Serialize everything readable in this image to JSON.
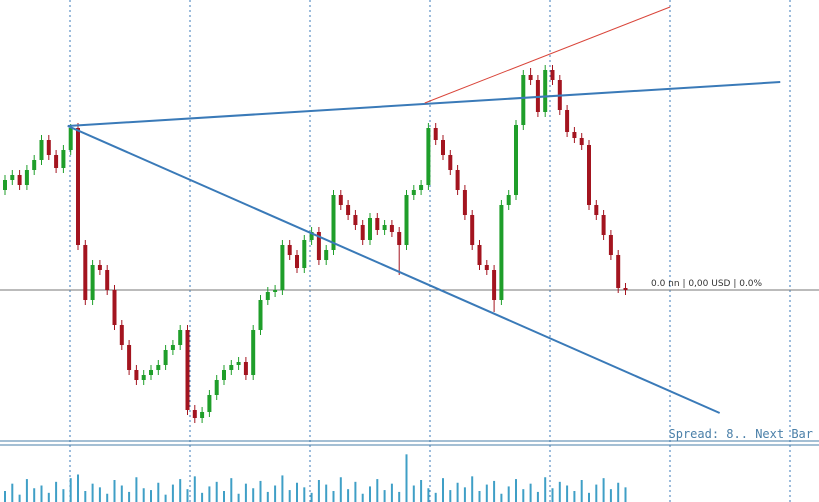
{
  "chart_data": {
    "type": "candlestick",
    "up_color": "#1f9e2a",
    "down_color": "#a3141f",
    "ylim": [
      0,
      440
    ],
    "ohlc": [
      [
        250,
        265,
        245,
        260
      ],
      [
        260,
        270,
        255,
        265
      ],
      [
        265,
        270,
        250,
        255
      ],
      [
        255,
        275,
        250,
        270
      ],
      [
        270,
        285,
        265,
        280
      ],
      [
        280,
        305,
        275,
        300
      ],
      [
        300,
        305,
        280,
        285
      ],
      [
        285,
        290,
        267,
        272
      ],
      [
        272,
        295,
        267,
        290
      ],
      [
        290,
        316,
        285,
        312
      ],
      [
        312,
        317,
        190,
        195
      ],
      [
        195,
        200,
        135,
        140
      ],
      [
        140,
        180,
        135,
        175
      ],
      [
        175,
        180,
        165,
        170
      ],
      [
        170,
        175,
        145,
        150
      ],
      [
        150,
        155,
        110,
        115
      ],
      [
        115,
        120,
        90,
        95
      ],
      [
        95,
        100,
        65,
        70
      ],
      [
        70,
        75,
        55,
        60
      ],
      [
        60,
        70,
        55,
        65
      ],
      [
        65,
        75,
        60,
        70
      ],
      [
        70,
        80,
        65,
        75
      ],
      [
        75,
        95,
        70,
        90
      ],
      [
        90,
        100,
        85,
        95
      ],
      [
        95,
        115,
        90,
        110
      ],
      [
        110,
        115,
        25,
        30
      ],
      [
        30,
        35,
        17,
        22
      ],
      [
        22,
        33,
        17,
        28
      ],
      [
        28,
        50,
        23,
        45
      ],
      [
        45,
        65,
        40,
        60
      ],
      [
        60,
        75,
        55,
        70
      ],
      [
        70,
        80,
        65,
        75
      ],
      [
        75,
        83,
        70,
        78
      ],
      [
        78,
        83,
        60,
        65
      ],
      [
        65,
        115,
        60,
        110
      ],
      [
        110,
        145,
        105,
        140
      ],
      [
        140,
        153,
        135,
        148
      ],
      [
        148,
        155,
        143,
        150
      ],
      [
        150,
        200,
        145,
        195
      ],
      [
        195,
        200,
        180,
        185
      ],
      [
        185,
        190,
        167,
        172
      ],
      [
        172,
        205,
        167,
        200
      ],
      [
        200,
        213,
        195,
        208
      ],
      [
        208,
        213,
        175,
        180
      ],
      [
        180,
        195,
        175,
        190
      ],
      [
        190,
        250,
        185,
        245
      ],
      [
        245,
        250,
        230,
        235
      ],
      [
        235,
        240,
        220,
        225
      ],
      [
        225,
        230,
        210,
        215
      ],
      [
        215,
        220,
        195,
        200
      ],
      [
        200,
        227,
        195,
        222
      ],
      [
        222,
        227,
        205,
        210
      ],
      [
        210,
        220,
        205,
        215
      ],
      [
        215,
        220,
        203,
        208
      ],
      [
        208,
        213,
        165,
        195
      ],
      [
        195,
        250,
        190,
        245
      ],
      [
        245,
        255,
        240,
        250
      ],
      [
        250,
        260,
        245,
        255
      ],
      [
        255,
        317,
        250,
        312
      ],
      [
        312,
        317,
        295,
        300
      ],
      [
        300,
        305,
        280,
        285
      ],
      [
        285,
        290,
        265,
        270
      ],
      [
        270,
        275,
        245,
        250
      ],
      [
        250,
        255,
        220,
        225
      ],
      [
        225,
        230,
        190,
        195
      ],
      [
        195,
        200,
        170,
        175
      ],
      [
        175,
        180,
        165,
        170
      ],
      [
        170,
        175,
        128,
        140
      ],
      [
        140,
        240,
        135,
        235
      ],
      [
        235,
        250,
        230,
        245
      ],
      [
        245,
        320,
        240,
        315
      ],
      [
        315,
        370,
        310,
        365
      ],
      [
        365,
        372,
        355,
        360
      ],
      [
        360,
        365,
        323,
        328
      ],
      [
        328,
        375,
        323,
        370
      ],
      [
        370,
        375,
        355,
        360
      ],
      [
        360,
        365,
        325,
        330
      ],
      [
        330,
        335,
        303,
        308
      ],
      [
        308,
        313,
        297,
        302
      ],
      [
        302,
        307,
        290,
        295
      ],
      [
        295,
        300,
        230,
        235
      ],
      [
        235,
        240,
        220,
        225
      ],
      [
        225,
        230,
        200,
        205
      ],
      [
        205,
        210,
        180,
        185
      ],
      [
        185,
        190,
        147,
        152
      ],
      [
        152,
        157,
        145,
        150
      ]
    ],
    "volume": [
      12,
      20,
      8,
      25,
      15,
      18,
      10,
      22,
      14,
      26,
      30,
      12,
      20,
      16,
      9,
      24,
      18,
      11,
      27,
      15,
      13,
      21,
      8,
      19,
      25,
      14,
      28,
      10,
      17,
      22,
      12,
      26,
      9,
      20,
      15,
      23,
      11,
      18,
      29,
      13,
      21,
      16,
      10,
      24,
      19,
      12,
      27,
      14,
      22,
      9,
      17,
      25,
      13,
      20,
      11,
      52,
      18,
      24,
      15,
      10,
      26,
      13,
      21,
      16,
      28,
      12,
      19,
      23,
      9,
      17,
      25,
      14,
      20,
      11,
      27,
      15,
      22,
      18,
      12,
      24,
      10,
      19,
      26,
      14,
      21,
      16
    ],
    "volume_color": "#3f9fc6",
    "volume_lim": [
      0,
      60
    ],
    "trendlines": [
      {
        "x": [
          8.6,
          106.2
        ],
        "y": [
          314,
          358
        ],
        "color": "#3a7ab8"
      },
      {
        "x": [
          8.6,
          97.9
        ],
        "y": [
          314,
          27
        ],
        "color": "#3a7ab8"
      },
      {
        "x": [
          57.5,
          91.1
        ],
        "y": [
          337,
          433
        ],
        "color": "#d9453a"
      }
    ],
    "price_line": 150,
    "price_label": "0.0 nn | 0,00 USD | 0.0%",
    "footer": "Spread: 8.. Next Bar"
  }
}
